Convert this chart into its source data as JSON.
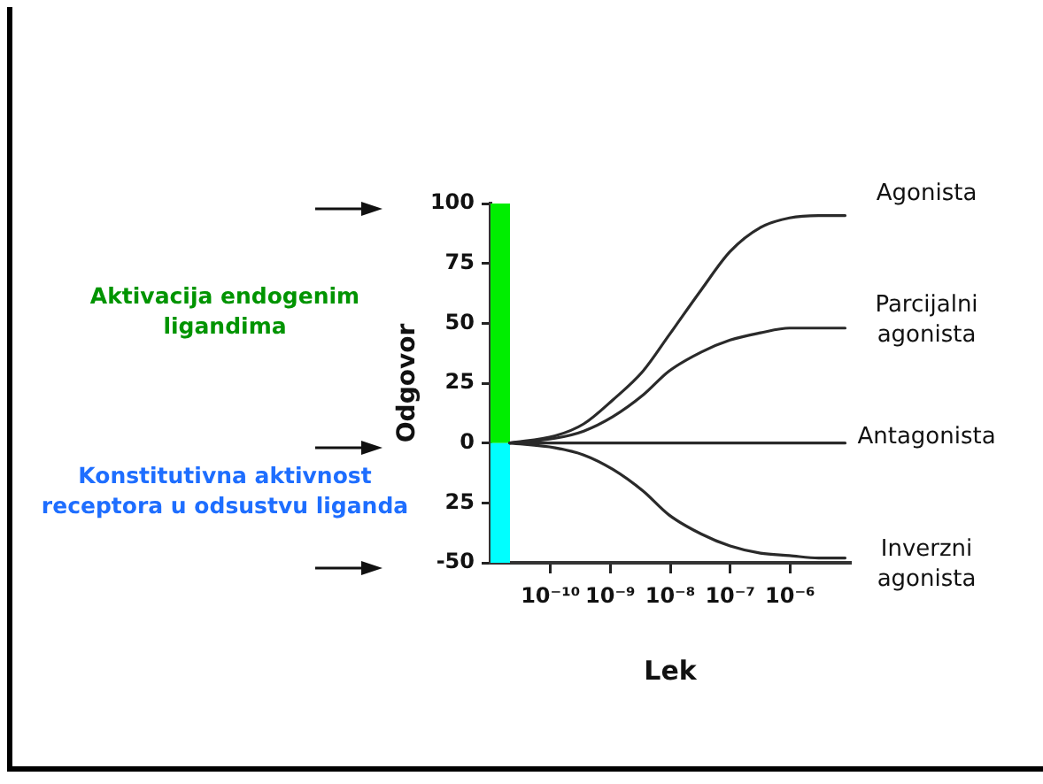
{
  "chart_data": {
    "type": "line",
    "xlabel": "Lek",
    "ylabel": "Odgovor",
    "log": "x",
    "xlim": [
      1e-11,
      1e-05
    ],
    "xticks": [
      {
        "value": 1e-10,
        "label": "10⁻¹⁰"
      },
      {
        "value": 1e-09,
        "label": "10⁻⁹"
      },
      {
        "value": 1e-08,
        "label": "10⁻⁸"
      },
      {
        "value": 1e-07,
        "label": "10⁻⁷"
      },
      {
        "value": 1e-06,
        "label": "10⁻⁶"
      }
    ],
    "ylim": [
      -50,
      100
    ],
    "yticks": [
      {
        "value": 100,
        "label": "100"
      },
      {
        "value": 75,
        "label": "75"
      },
      {
        "value": 50,
        "label": "50"
      },
      {
        "value": 25,
        "label": "25"
      },
      {
        "value": 0,
        "label": "0"
      },
      {
        "value": -25,
        "label": "25"
      },
      {
        "value": -50,
        "label": "-50"
      }
    ],
    "x": [
      2.1e-11,
      1.2e-10,
      3.6e-10,
      1.1e-09,
      3.5e-09,
      9.5e-09,
      3.3e-08,
      1e-07,
      3.2e-07,
      9.8e-07,
      3e-06,
      8.3e-06
    ],
    "series": [
      {
        "name": "Agonista",
        "color": "#2a2a2a",
        "values": [
          0,
          3,
          8,
          18,
          30,
          45,
          64,
          80,
          90,
          94,
          95,
          95
        ]
      },
      {
        "name": "Parcijalni agonista",
        "color": "#2a2a2a",
        "values": [
          0,
          2,
          5,
          11,
          20,
          30,
          38,
          43,
          46,
          48,
          48,
          48
        ]
      },
      {
        "name": "Antagonista",
        "color": "#2a2a2a",
        "values": [
          0,
          0,
          0,
          0,
          0,
          0,
          0,
          0,
          0,
          0,
          0,
          0
        ]
      },
      {
        "name": "Inverzni agonista",
        "color": "#2a2a2a",
        "values": [
          0,
          -2,
          -5,
          -11,
          -20,
          -30,
          -38,
          -43,
          -46,
          -47,
          -48,
          -48
        ]
      }
    ],
    "bands": [
      {
        "axis": "y",
        "from": 0,
        "to": 100,
        "color": "#00ee00"
      },
      {
        "axis": "y",
        "from": -50,
        "to": 0,
        "color": "#00ffff"
      }
    ],
    "annotations": [
      "Aktivacija endogenim ligandima",
      "Konstitutivna aktivnost receptora u odsustvu liganda"
    ],
    "grid": false,
    "legend": false,
    "marker": "none",
    "line_style": "solid"
  }
}
